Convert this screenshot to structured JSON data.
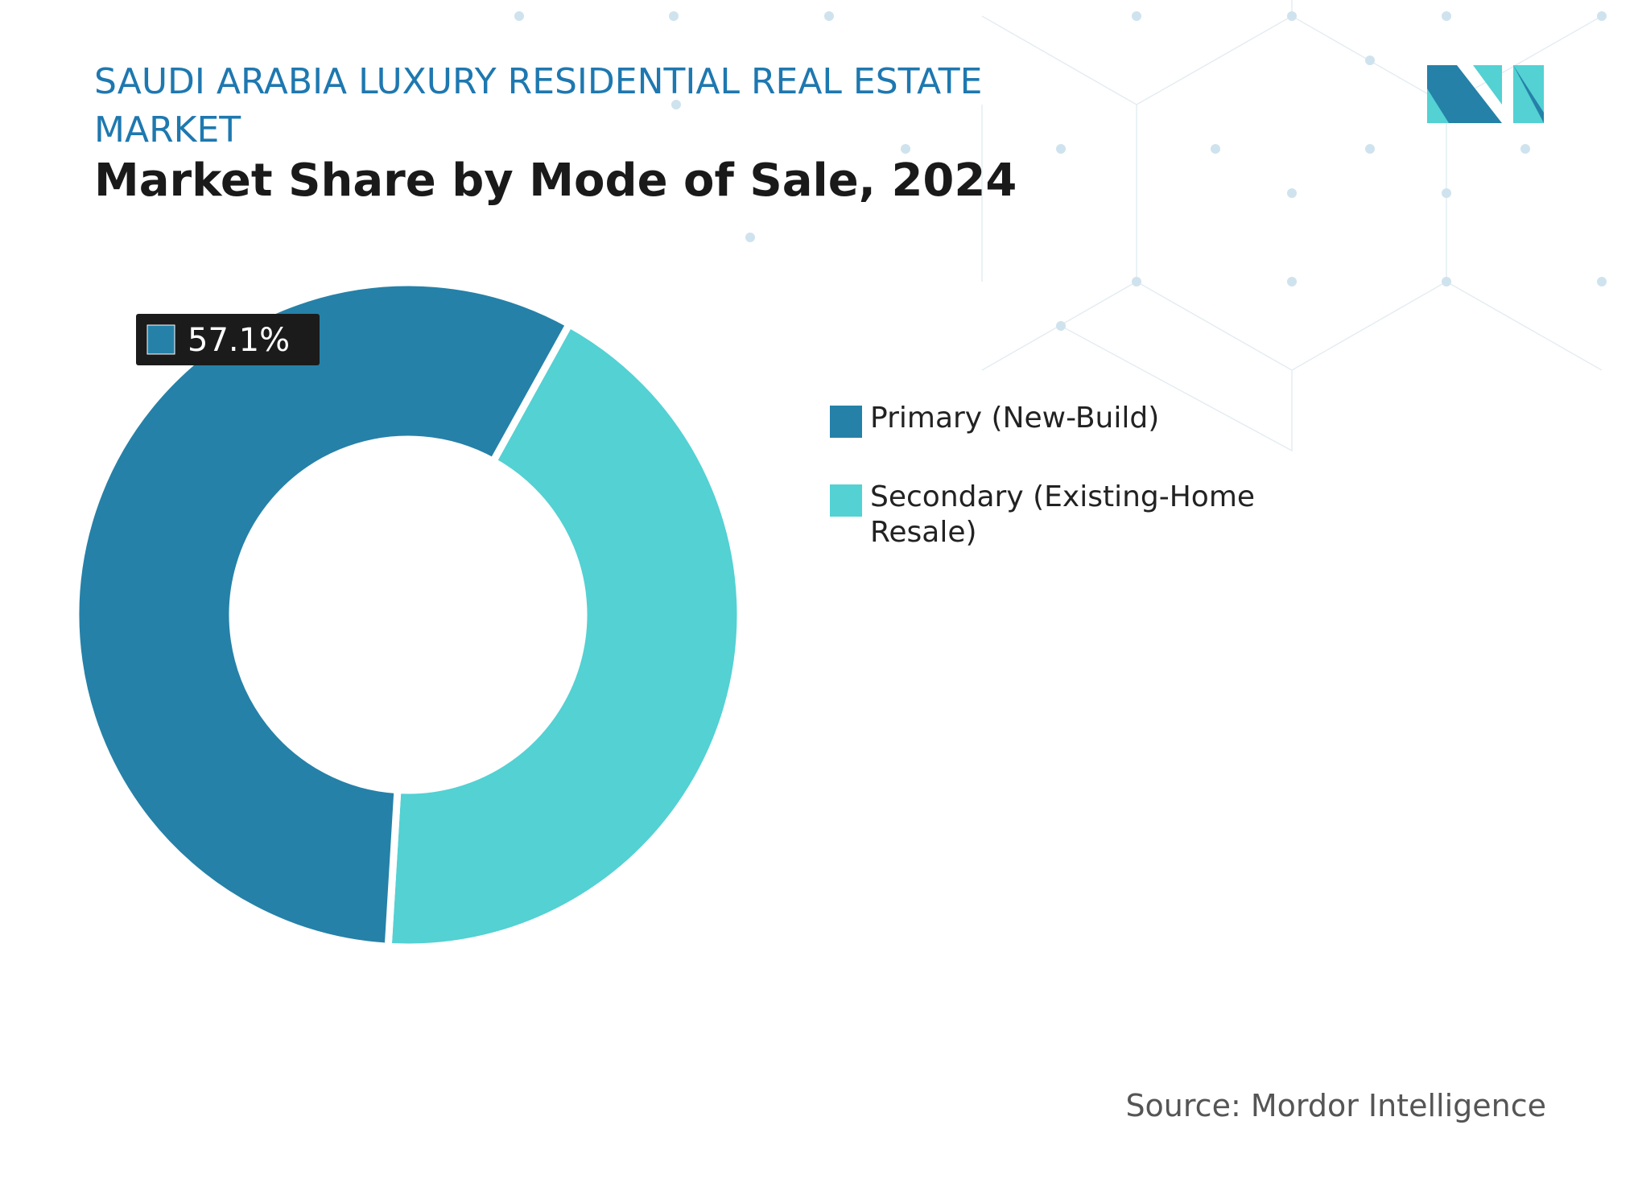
{
  "chart_data": {
    "type": "donut",
    "title": "SAUDI ARABIA LUXURY RESIDENTIAL REAL ESTATE MARKET",
    "subtitle": "Market Share by Mode of Sale, 2024",
    "categories": [
      "Primary (New-Build)",
      "Secondary (Existing-Home Resale)"
    ],
    "values": [
      57.1,
      42.9
    ],
    "value_labels": [
      "57.1%",
      null
    ],
    "colors": [
      "#2581a8",
      "#53d1d3"
    ],
    "source": "Source: Mordor Intelligence"
  }
}
